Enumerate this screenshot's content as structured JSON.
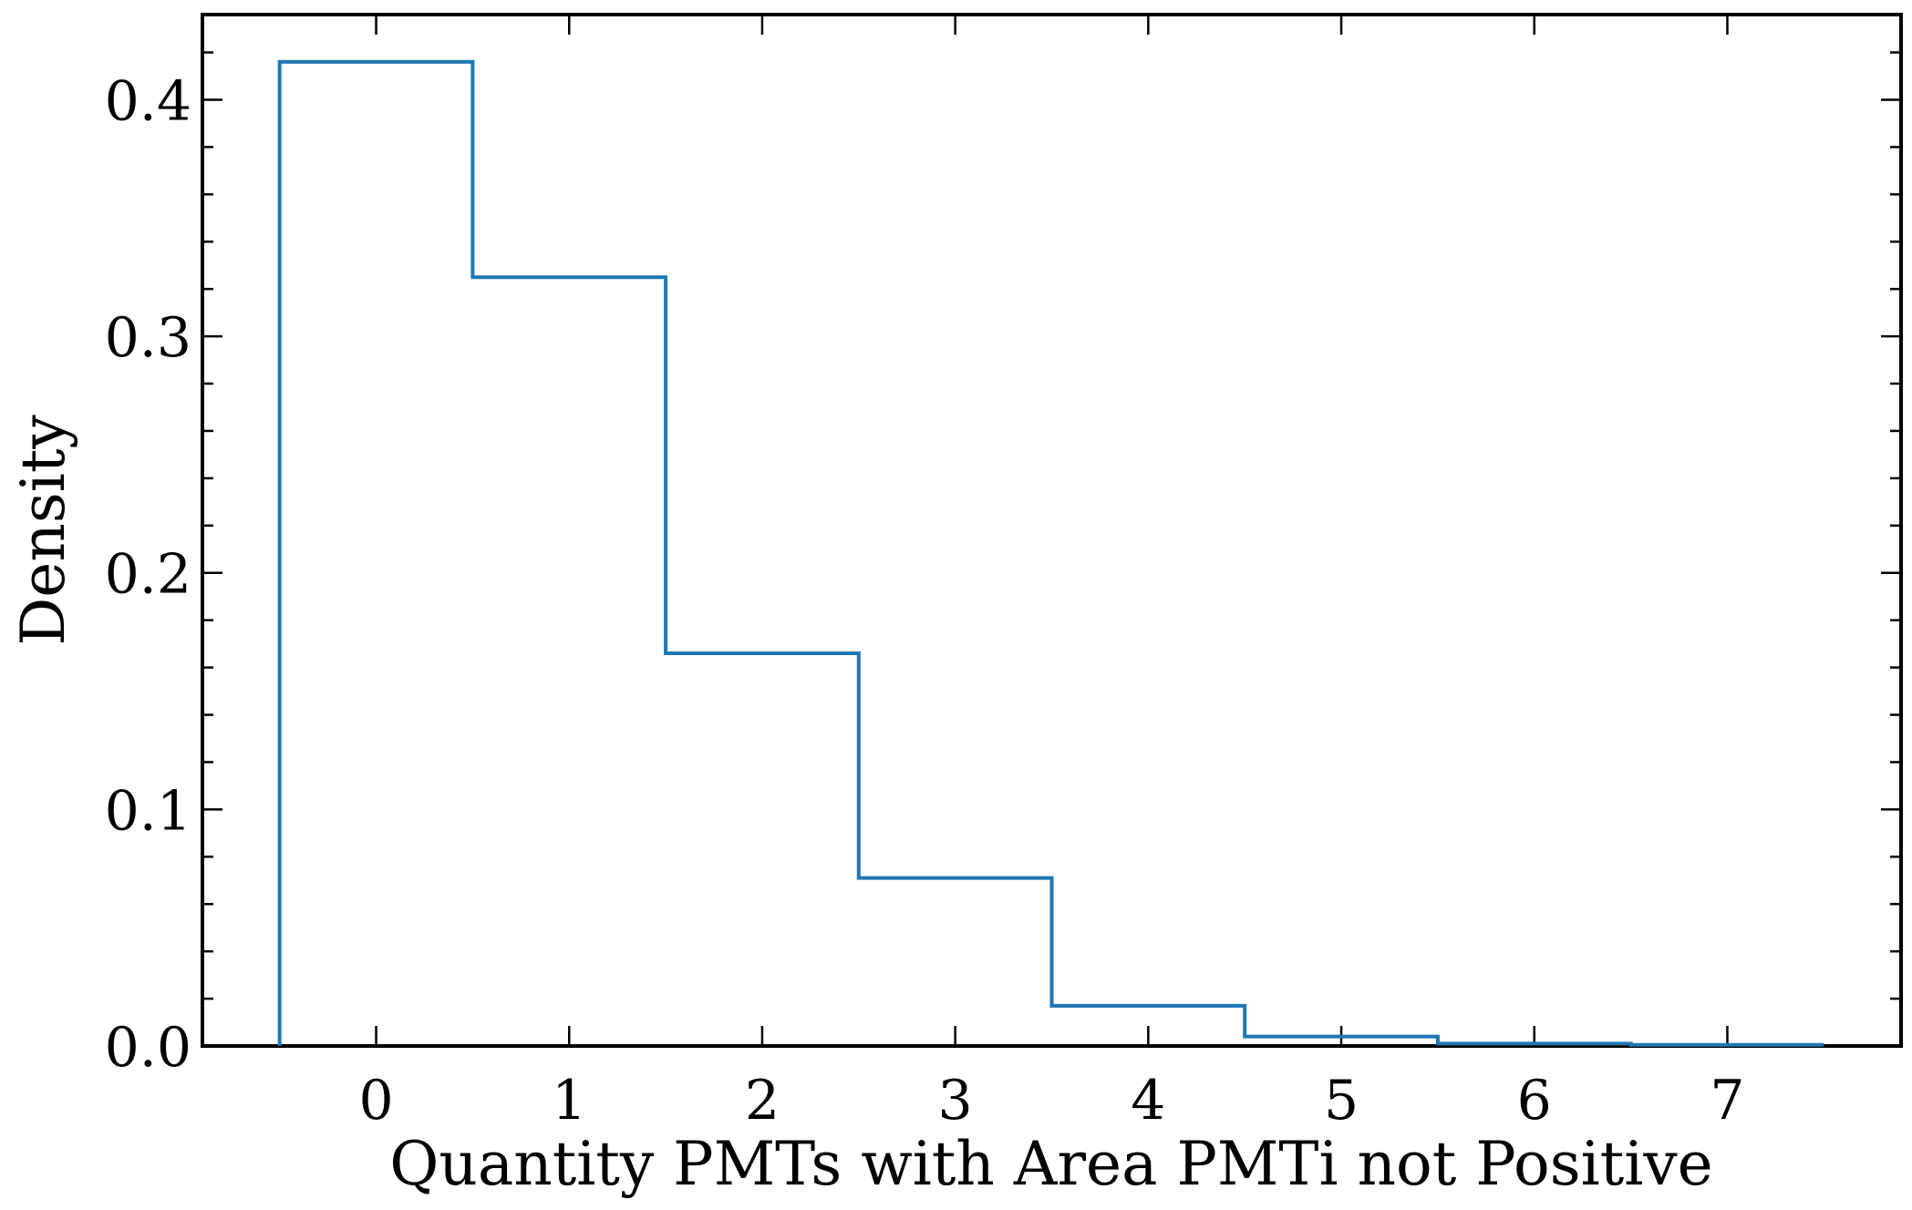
{
  "chart_data": {
    "type": "histogram",
    "title": "",
    "xlabel": "Quantity PMTs with Area PMTi not Positive",
    "ylabel": "Density",
    "xlim": [
      -0.9,
      7.9
    ],
    "ylim": [
      0.0,
      0.436
    ],
    "x_ticks": [
      0,
      1,
      2,
      3,
      4,
      5,
      6,
      7
    ],
    "x_tick_labels": [
      "0",
      "1",
      "2",
      "3",
      "4",
      "5",
      "6",
      "7"
    ],
    "y_ticks": [
      0.0,
      0.1,
      0.2,
      0.3,
      0.4
    ],
    "y_tick_labels": [
      "0.0",
      "0.1",
      "0.2",
      "0.3",
      "0.4"
    ],
    "y_minor_step": 0.02,
    "bin_edges": [
      -0.5,
      0.5,
      1.5,
      2.5,
      3.5,
      4.5,
      5.5,
      6.5,
      7.5
    ],
    "values": [
      0.416,
      0.325,
      0.166,
      0.071,
      0.017,
      0.004,
      0.001,
      0.0005
    ],
    "histtype": "step",
    "line_color": "#1f77b4",
    "grid": false,
    "legend": "none"
  }
}
